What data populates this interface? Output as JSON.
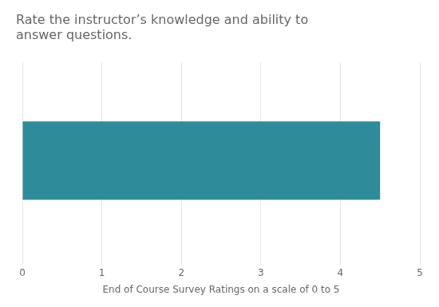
{
  "chart_data": {
    "type": "bar",
    "orientation": "horizontal",
    "title": "Rate the instructor’s knowledge and ability to\nanswer questions.",
    "categories": [
      null
    ],
    "values": [
      4.5
    ],
    "color": "#2e8b9a",
    "xlabel": "End of Course Survey Ratings on a scale of 0 to 5",
    "xlim": [
      0,
      5
    ],
    "xticks": [
      0,
      1,
      2,
      3,
      4,
      5
    ],
    "grid": true,
    "tick_labels": "x"
  }
}
